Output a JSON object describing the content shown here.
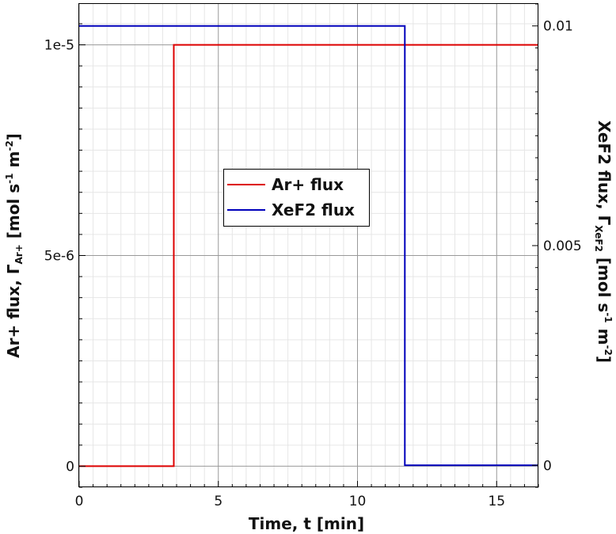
{
  "chart_data": {
    "type": "line",
    "xlabel": "Time, t [min]",
    "ylabel": {
      "main": "Ar+ flux, Γ",
      "sub": "Ar+",
      "units_a": " [mol s",
      "sup1": "-1",
      "units_b": " m",
      "sup2": "-2",
      "units_c": "]"
    },
    "y2label": {
      "main": "XeF2 flux, Γ",
      "sub": "XeF2",
      "units_a": " [mol s",
      "sup1": "-1",
      "units_b": " m",
      "sup2": "-2",
      "units_c": "]"
    },
    "xlim": [
      0,
      16.5
    ],
    "ylim": [
      -5e-07,
      1.097e-05
    ],
    "y2lim": [
      -0.0005,
      0.0105
    ],
    "x_ticks": [
      0,
      5,
      10,
      15
    ],
    "x_tick_labels": [
      "0",
      "5",
      "10",
      "15"
    ],
    "y_ticks": [
      0,
      5e-06,
      1e-05
    ],
    "y_tick_labels": [
      "0",
      "5e-6",
      "1e-5"
    ],
    "y2_ticks": [
      0,
      0.005,
      0.01
    ],
    "y2_tick_labels": [
      "0",
      "0.005",
      "0.01"
    ],
    "grid": true,
    "legend_position": "center",
    "series": [
      {
        "name": "Ar+ flux",
        "axis": "left",
        "color": "#dd0000",
        "x": [
          0,
          3.4,
          3.4,
          16.5
        ],
        "y": [
          0,
          0,
          1e-05,
          1e-05
        ]
      },
      {
        "name": "XeF2 flux",
        "axis": "right",
        "color": "#0000bb",
        "x": [
          0,
          11.7,
          11.7,
          16.5
        ],
        "y": [
          0.01,
          0.01,
          0,
          0
        ]
      }
    ]
  }
}
